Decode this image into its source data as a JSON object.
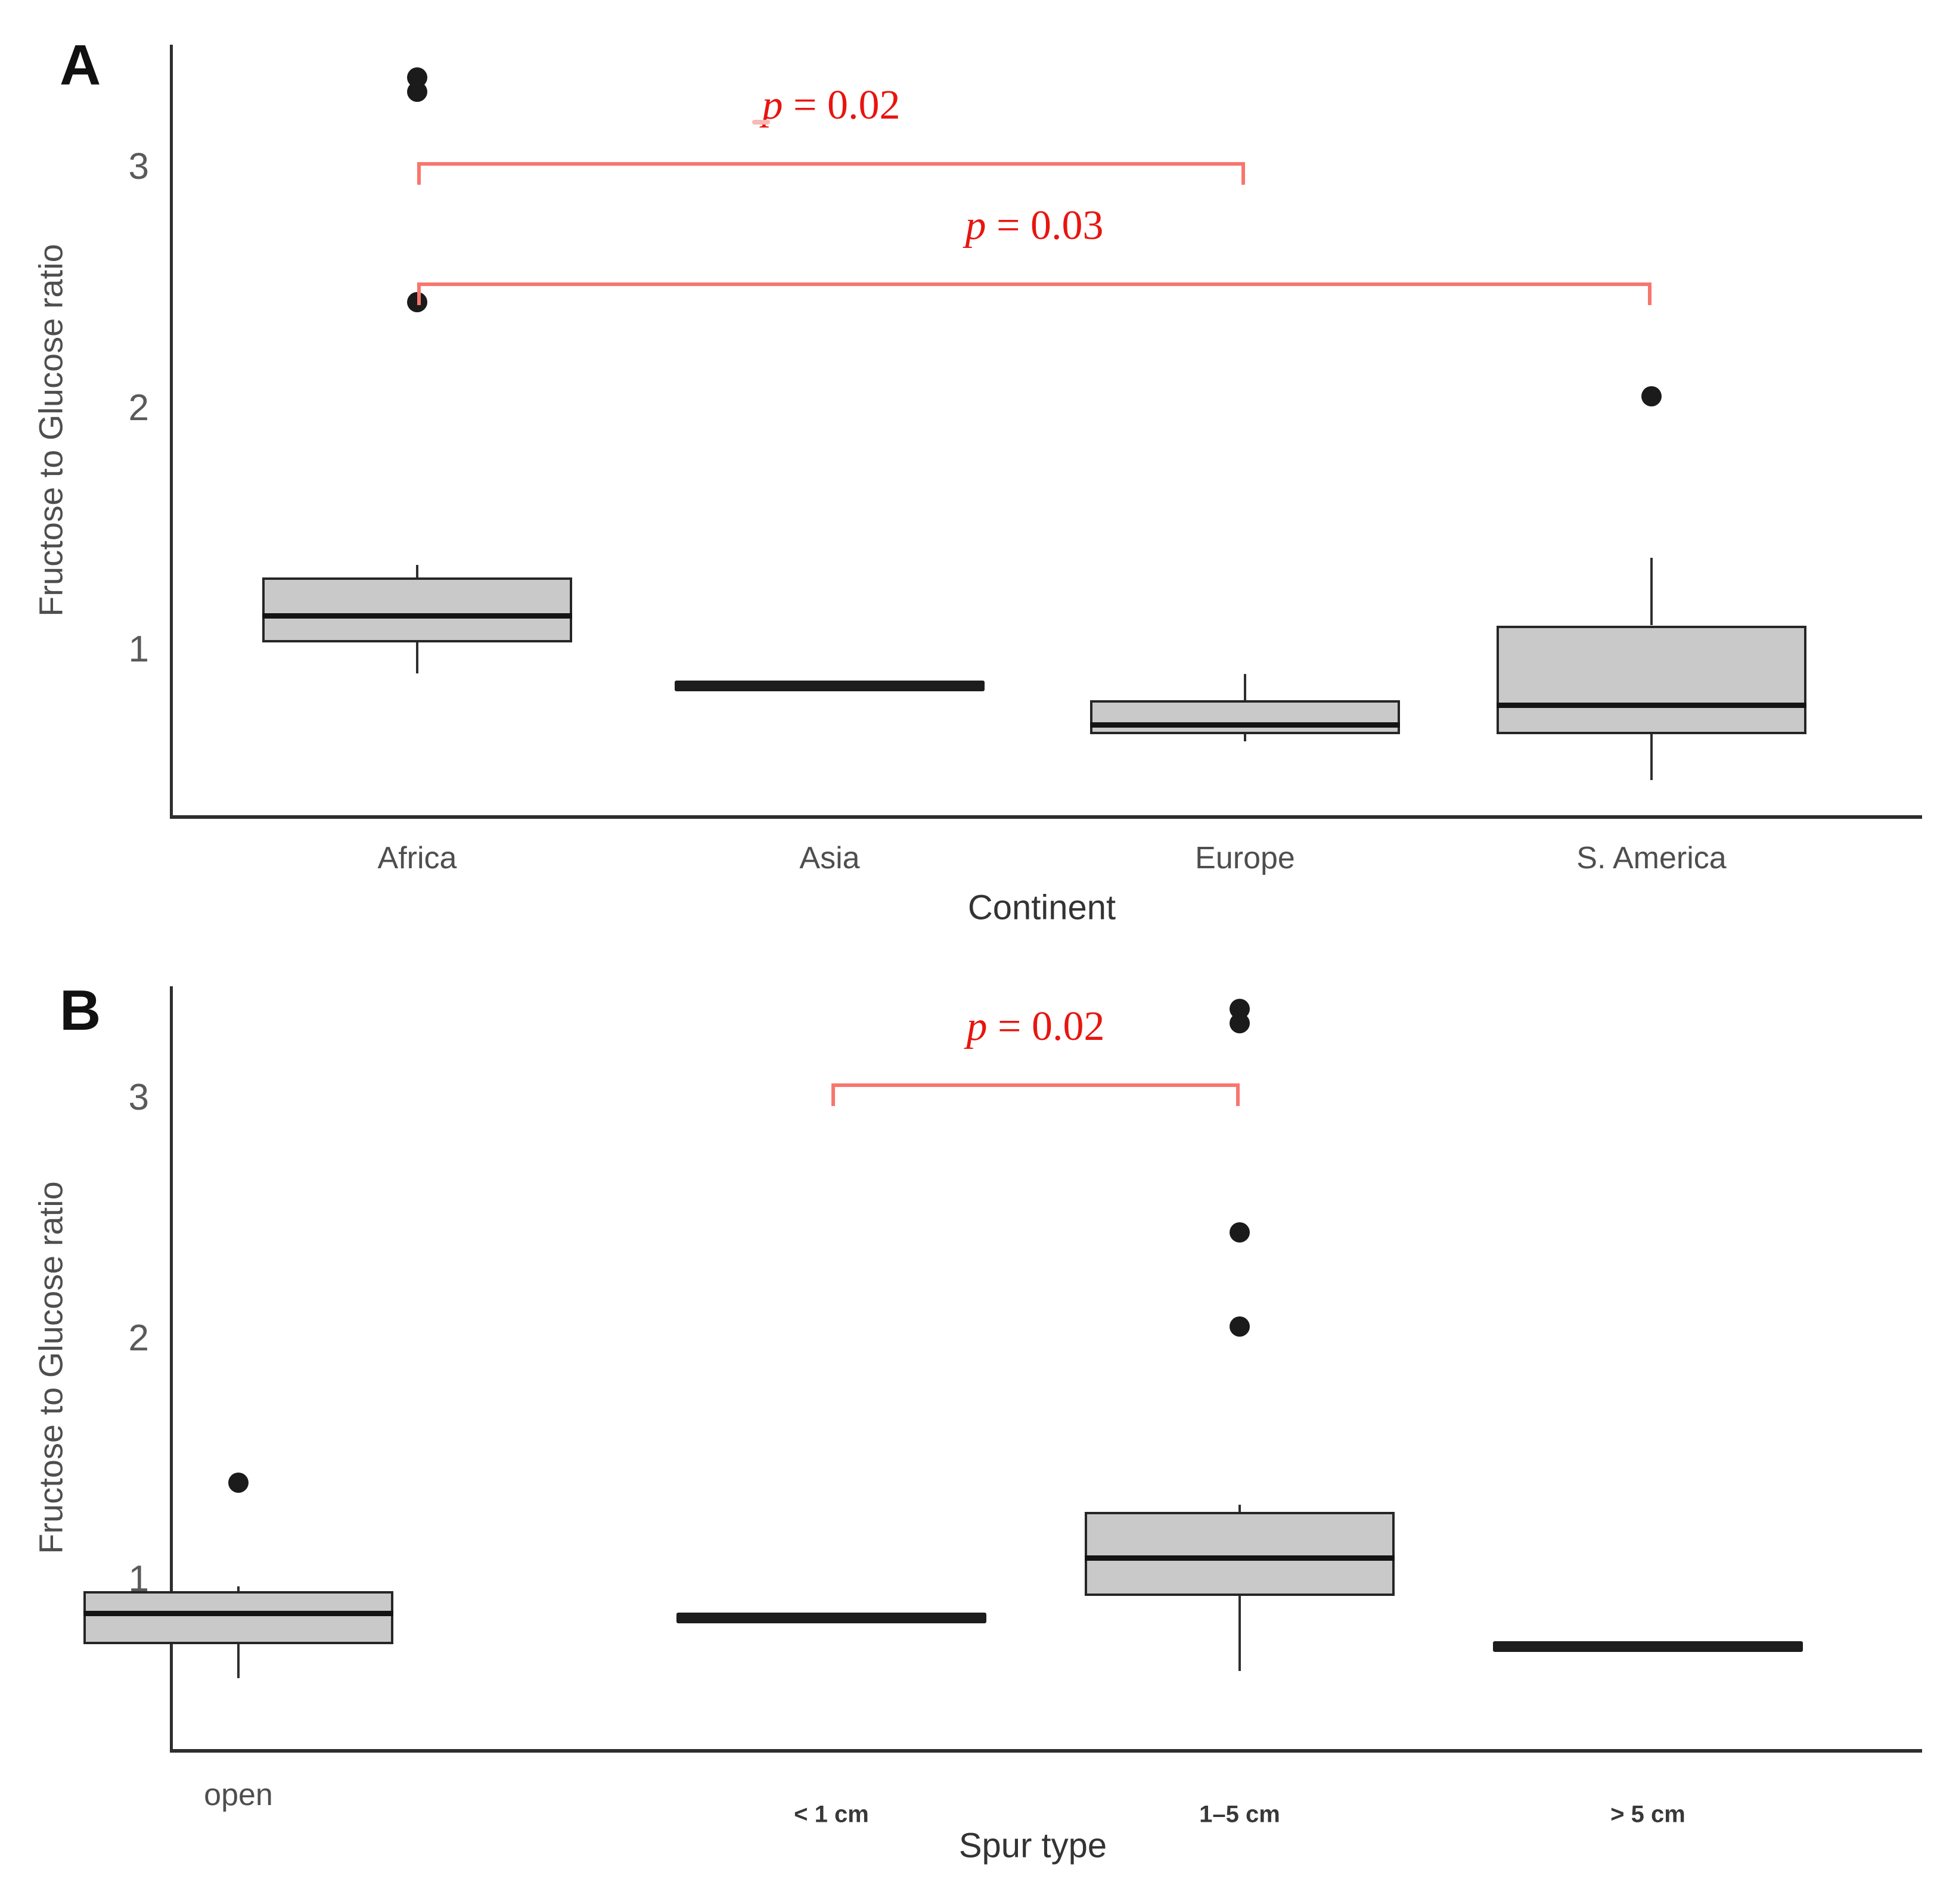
{
  "colors": {
    "box_fill": "#c9c9c9",
    "box_border": "#262626",
    "median": "#141414",
    "axis": "#2e2e2e",
    "bracket_red": "#f8766d",
    "p_text_red": "#e8150f",
    "label_gray": "#4e4e4e"
  },
  "chart_data": [
    {
      "type": "boxplot",
      "panel_label": "A",
      "xlabel": "Continent",
      "ylabel": "Fructose to Glucose ratio",
      "yticks": [
        1,
        2,
        3
      ],
      "ylim": [
        0.31,
        3.51
      ],
      "grid": false,
      "categories": [
        "Africa",
        "Asia",
        "Europe",
        "S. America"
      ],
      "boxes": [
        {
          "category": "Africa",
          "flat": false,
          "whisker_low": 0.9,
          "q1": 1.03,
          "median": 1.14,
          "q3": 1.3,
          "whisker_high": 1.35,
          "outliers": [
            3.37,
            3.31,
            2.44
          ]
        },
        {
          "category": "Asia",
          "flat": true,
          "value": 0.85,
          "outliers": []
        },
        {
          "category": "Europe",
          "flat": false,
          "whisker_low": 0.62,
          "q1": 0.65,
          "median": 0.69,
          "q3": 0.79,
          "whisker_high": 0.9,
          "outliers": []
        },
        {
          "category": "S. America",
          "flat": false,
          "whisker_low": 0.46,
          "q1": 0.65,
          "median": 0.77,
          "q3": 1.1,
          "whisker_high": 1.38,
          "outliers": [
            2.05
          ]
        }
      ],
      "significance": [
        {
          "from": "Africa",
          "to": "Europe",
          "bar_y": 3.02,
          "label": "p = 0.02"
        },
        {
          "from": "Africa",
          "to": "S. America",
          "bar_y": 2.52,
          "label": "p = 0.03"
        }
      ]
    },
    {
      "type": "boxplot",
      "panel_label": "B",
      "xlabel": "Spur type",
      "ylabel": "Fructose to Glucose ratio",
      "yticks": [
        1,
        2,
        3
      ],
      "ylim": [
        0.3,
        3.46
      ],
      "grid": false,
      "categories": [
        "open",
        "< 1 cm",
        "1–5 cm",
        "> 5 cm"
      ],
      "boxes": [
        {
          "category": "open",
          "flat": false,
          "whisker_low": 0.59,
          "q1": 0.73,
          "median": 0.86,
          "q3": 0.95,
          "whisker_high": 0.97,
          "outliers": [
            1.4
          ]
        },
        {
          "category": "< 1 cm",
          "flat": true,
          "value": 0.84,
          "outliers": []
        },
        {
          "category": "1–5 cm",
          "flat": false,
          "whisker_low": 0.62,
          "q1": 0.93,
          "median": 1.09,
          "q3": 1.28,
          "whisker_high": 1.31,
          "outliers": [
            3.37,
            3.31,
            2.44,
            2.05
          ]
        },
        {
          "category": "> 5 cm",
          "flat": true,
          "value": 0.72,
          "outliers": []
        }
      ],
      "significance": [
        {
          "from": "< 1 cm",
          "to": "1–5 cm",
          "bar_y": 3.06,
          "label": "p = 0.02"
        }
      ]
    }
  ]
}
